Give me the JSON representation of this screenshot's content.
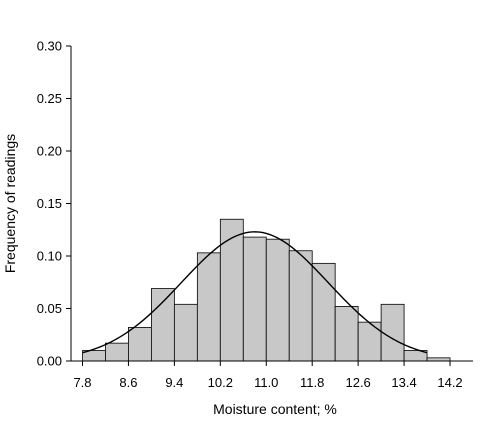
{
  "chart_data": {
    "type": "bar",
    "subtype": "histogram-with-normal-fit",
    "xlabel": "Moisture content; %",
    "ylabel": "Frequency of readings",
    "xlim": [
      7.6,
      14.6
    ],
    "ylim": [
      0,
      0.3
    ],
    "x_ticks": [
      "7.8",
      "8.6",
      "9.4",
      "10.2",
      "11.0",
      "11.8",
      "12.6",
      "13.4",
      "14.2"
    ],
    "y_ticks": [
      "0.00",
      "0.05",
      "0.10",
      "0.15",
      "0.20",
      "0.25",
      "0.30"
    ],
    "bin_width": 0.4,
    "bins": [
      {
        "x0": 7.8,
        "x1": 8.2,
        "value": 0.01
      },
      {
        "x0": 8.2,
        "x1": 8.6,
        "value": 0.017
      },
      {
        "x0": 8.6,
        "x1": 9.0,
        "value": 0.032
      },
      {
        "x0": 9.0,
        "x1": 9.4,
        "value": 0.069
      },
      {
        "x0": 9.4,
        "x1": 9.8,
        "value": 0.054
      },
      {
        "x0": 9.8,
        "x1": 10.2,
        "value": 0.103
      },
      {
        "x0": 10.2,
        "x1": 10.6,
        "value": 0.135
      },
      {
        "x0": 10.6,
        "x1": 11.0,
        "value": 0.118
      },
      {
        "x0": 11.0,
        "x1": 11.4,
        "value": 0.116
      },
      {
        "x0": 11.4,
        "x1": 11.8,
        "value": 0.105
      },
      {
        "x0": 11.8,
        "x1": 12.2,
        "value": 0.093
      },
      {
        "x0": 12.2,
        "x1": 12.6,
        "value": 0.052
      },
      {
        "x0": 12.6,
        "x1": 13.0,
        "value": 0.037
      },
      {
        "x0": 13.0,
        "x1": 13.4,
        "value": 0.054
      },
      {
        "x0": 13.4,
        "x1": 13.8,
        "value": 0.01
      },
      {
        "x0": 13.8,
        "x1": 14.2,
        "value": 0.003
      }
    ],
    "fit_curve": {
      "type": "normal",
      "mean": 10.8,
      "sd": 1.28,
      "peak": 0.123,
      "x_range": [
        7.8,
        13.8
      ]
    },
    "grid": false,
    "legend": "none",
    "colors": {
      "bar_fill": "#c8c8c8",
      "bar_edge": "#000000",
      "curve": "#000000",
      "axis": "#000000"
    }
  }
}
